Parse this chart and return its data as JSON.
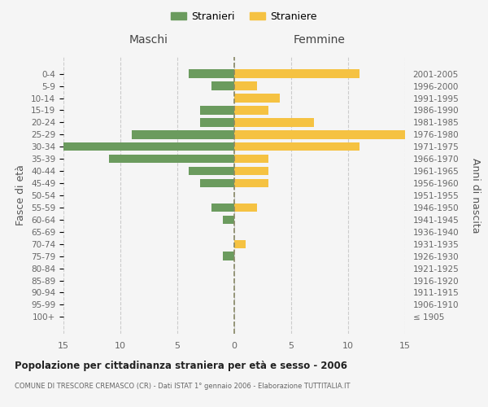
{
  "age_groups": [
    "100+",
    "95-99",
    "90-94",
    "85-89",
    "80-84",
    "75-79",
    "70-74",
    "65-69",
    "60-64",
    "55-59",
    "50-54",
    "45-49",
    "40-44",
    "35-39",
    "30-34",
    "25-29",
    "20-24",
    "15-19",
    "10-14",
    "5-9",
    "0-4"
  ],
  "birth_years": [
    "≤ 1905",
    "1906-1910",
    "1911-1915",
    "1916-1920",
    "1921-1925",
    "1926-1930",
    "1931-1935",
    "1936-1940",
    "1941-1945",
    "1946-1950",
    "1951-1955",
    "1956-1960",
    "1961-1965",
    "1966-1970",
    "1971-1975",
    "1976-1980",
    "1981-1985",
    "1986-1990",
    "1991-1995",
    "1996-2000",
    "2001-2005"
  ],
  "males": [
    0,
    0,
    0,
    0,
    0,
    1,
    0,
    0,
    1,
    2,
    0,
    3,
    4,
    11,
    15,
    9,
    3,
    3,
    0,
    2,
    4
  ],
  "females": [
    0,
    0,
    0,
    0,
    0,
    0,
    1,
    0,
    0,
    2,
    0,
    3,
    3,
    3,
    11,
    15,
    7,
    3,
    4,
    2,
    11
  ],
  "male_color": "#6b9b5e",
  "female_color": "#f5c242",
  "title_main": "Popolazione per cittadinanza straniera per età e sesso - 2006",
  "title_sub": "COMUNE DI TRESCORE CREMASCO (CR) - Dati ISTAT 1° gennaio 2006 - Elaborazione TUTTITALIA.IT",
  "left_label": "Maschi",
  "right_label": "Femmine",
  "ylabel_left": "Fasce di età",
  "ylabel_right": "Anni di nascita",
  "legend_male": "Stranieri",
  "legend_female": "Straniere",
  "xlim": 15,
  "background_color": "#f5f5f5",
  "grid_color": "#cccccc"
}
